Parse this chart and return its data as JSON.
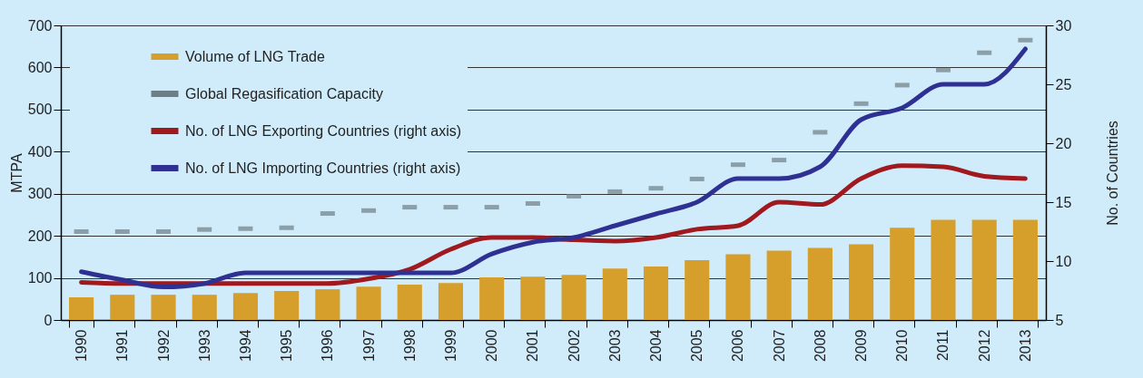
{
  "chart_data": {
    "type": "bar",
    "categories": [
      "1990",
      "1991",
      "1992",
      "1993",
      "1994",
      "1995",
      "1996",
      "1997",
      "1998",
      "1999",
      "2000",
      "2001",
      "2002",
      "2003",
      "2004",
      "2005",
      "2006",
      "2007",
      "2008",
      "2009",
      "2010",
      "2011",
      "2012",
      "2013"
    ],
    "ylabel": "MTPA",
    "y2label": "No. of Countries",
    "ylim": [
      0,
      700
    ],
    "yticks": [
      0,
      100,
      200,
      300,
      400,
      500,
      600,
      700
    ],
    "y2lim": [
      5,
      30
    ],
    "y2ticks": [
      5,
      10,
      15,
      20,
      25,
      30
    ],
    "grid": "y",
    "legend": "top left",
    "series": [
      {
        "name": "Volume of LNG Trade",
        "color": "#d69e2a",
        "values": [
          54,
          60,
          60,
          60,
          64,
          69,
          73,
          79,
          84,
          88,
          101,
          103,
          107,
          122,
          127,
          142,
          156,
          165,
          171,
          180,
          219,
          238,
          238,
          238
        ]
      },
      {
        "name": "Global Regasification Capacity",
        "type": "scatter",
        "color": "#6d7f86",
        "values": [
          210,
          210,
          210,
          215,
          217,
          219,
          253,
          260,
          268,
          268,
          268,
          277,
          294,
          305,
          313,
          335,
          369,
          380,
          446,
          514,
          558,
          594,
          635,
          665
        ]
      },
      {
        "name": "No. of LNG Exporting Countries (right axis)",
        "type": "line",
        "axis": "y2",
        "color": "#a0191e",
        "values": [
          8.2,
          8.1,
          8.1,
          8.1,
          8.1,
          8.1,
          8.1,
          8.5,
          9.3,
          11,
          12,
          12,
          11.8,
          11.7,
          12,
          12.7,
          13,
          15,
          14.8,
          17,
          18.1,
          18,
          17.2,
          17
        ]
      },
      {
        "name": "No. of LNG Importing Countries (right axis)",
        "type": "line",
        "axis": "y2",
        "color": "#2e3192",
        "values": [
          9.1,
          8.4,
          7.8,
          8.1,
          9,
          9,
          9,
          9,
          9,
          9,
          10.6,
          11.6,
          12,
          13,
          14,
          15,
          17,
          17,
          18,
          22,
          23,
          25,
          25,
          28
        ]
      }
    ]
  }
}
